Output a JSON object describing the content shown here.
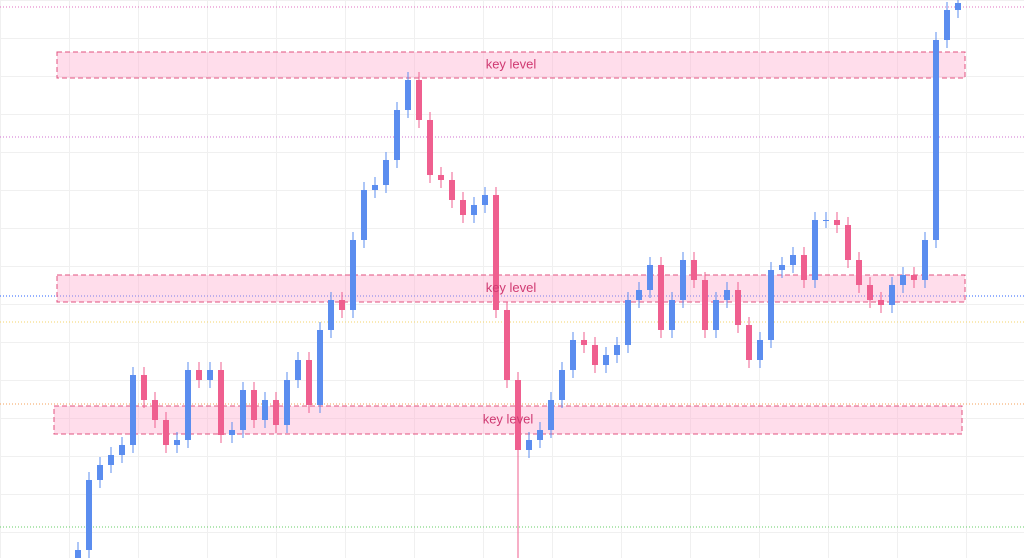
{
  "chart_data": {
    "type": "candlestick",
    "categories": [
      null,
      null,
      null,
      null,
      null,
      null,
      null,
      null,
      null,
      null,
      null,
      null,
      null,
      null,
      null,
      null,
      null,
      null,
      null,
      null,
      null,
      null,
      null,
      null,
      null,
      null,
      null,
      null,
      null,
      null,
      null,
      null,
      null,
      null,
      null,
      null,
      null,
      null,
      null,
      null,
      null,
      null,
      null,
      null,
      null,
      null,
      null,
      null,
      null,
      null,
      null,
      null,
      null,
      null,
      null,
      null,
      null,
      null,
      null,
      null,
      null,
      null,
      null,
      null,
      null,
      null,
      null,
      null,
      null,
      null,
      null,
      null,
      null,
      null,
      null,
      null,
      null,
      null,
      null,
      null,
      null
    ],
    "open": [
      0,
      8,
      78,
      93,
      103,
      113,
      183,
      158,
      138,
      113,
      118,
      188,
      178,
      188,
      123,
      128,
      168,
      138,
      158,
      133,
      178,
      198,
      153,
      228,
      258,
      248,
      318,
      368,
      373,
      398,
      448,
      478,
      438,
      383,
      378,
      358,
      343,
      353,
      363,
      248,
      178,
      108,
      118,
      128,
      158,
      188,
      218,
      213,
      193,
      203,
      213,
      258,
      268,
      293,
      228,
      258,
      298,
      278,
      228,
      258,
      268,
      233,
      198,
      218,
      288,
      293,
      303,
      278,
      338,
      338,
      333,
      298,
      273,
      258,
      253,
      273,
      283,
      278,
      318,
      518,
      548
    ],
    "high": [
      16,
      86,
      101,
      111,
      121,
      191,
      191,
      166,
      146,
      126,
      196,
      196,
      196,
      196,
      136,
      176,
      176,
      166,
      166,
      186,
      206,
      206,
      236,
      266,
      266,
      326,
      376,
      381,
      406,
      456,
      486,
      486,
      446,
      391,
      386,
      366,
      361,
      371,
      371,
      256,
      186,
      126,
      136,
      166,
      196,
      226,
      226,
      221,
      211,
      221,
      266,
      276,
      301,
      301,
      266,
      306,
      306,
      286,
      266,
      276,
      276,
      241,
      226,
      296,
      301,
      311,
      311,
      346,
      346,
      346,
      341,
      306,
      281,
      266,
      281,
      291,
      291,
      326,
      526,
      556,
      558
    ],
    "low": [
      0,
      0,
      70,
      85,
      95,
      105,
      150,
      130,
      105,
      105,
      110,
      170,
      170,
      115,
      115,
      120,
      130,
      130,
      125,
      125,
      170,
      145,
      145,
      220,
      240,
      240,
      310,
      360,
      365,
      390,
      440,
      430,
      375,
      370,
      350,
      335,
      335,
      345,
      240,
      170,
      0,
      100,
      110,
      120,
      150,
      180,
      205,
      185,
      185,
      195,
      205,
      250,
      260,
      220,
      220,
      250,
      270,
      220,
      220,
      250,
      225,
      190,
      190,
      210,
      280,
      285,
      270,
      270,
      330,
      325,
      290,
      265,
      250,
      245,
      245,
      265,
      270,
      270,
      310,
      510,
      540
    ],
    "close": [
      8,
      78,
      93,
      103,
      113,
      183,
      158,
      138,
      113,
      118,
      188,
      178,
      188,
      123,
      128,
      168,
      138,
      158,
      133,
      178,
      198,
      153,
      228,
      258,
      248,
      318,
      368,
      373,
      398,
      448,
      478,
      438,
      383,
      378,
      358,
      343,
      353,
      363,
      248,
      178,
      108,
      118,
      128,
      158,
      188,
      218,
      213,
      193,
      203,
      213,
      258,
      268,
      293,
      228,
      258,
      298,
      278,
      228,
      258,
      268,
      233,
      198,
      218,
      288,
      293,
      303,
      278,
      338,
      338,
      333,
      298,
      273,
      258,
      253,
      273,
      283,
      278,
      318,
      518,
      548,
      555
    ],
    "up_color": "#5b8def",
    "down_color": "#ef5f8f",
    "ylim": [
      0,
      558
    ],
    "zones": [
      {
        "label": "key level",
        "high": 506,
        "low": 480
      },
      {
        "label": "key level",
        "high": 283,
        "low": 256
      },
      {
        "label": "key level",
        "high": 152,
        "low": 124
      }
    ],
    "zone_color": "#e0527f",
    "hlines": [
      {
        "value": 551,
        "color": "#e070c0"
      },
      {
        "value": 421,
        "color": "#d070d0"
      },
      {
        "value": 262,
        "color": "#2962ff"
      },
      {
        "value": 236,
        "color": "#f5d66a"
      },
      {
        "value": 154,
        "color": "#f5a05a"
      },
      {
        "value": 31,
        "color": "#66cc66"
      }
    ]
  }
}
